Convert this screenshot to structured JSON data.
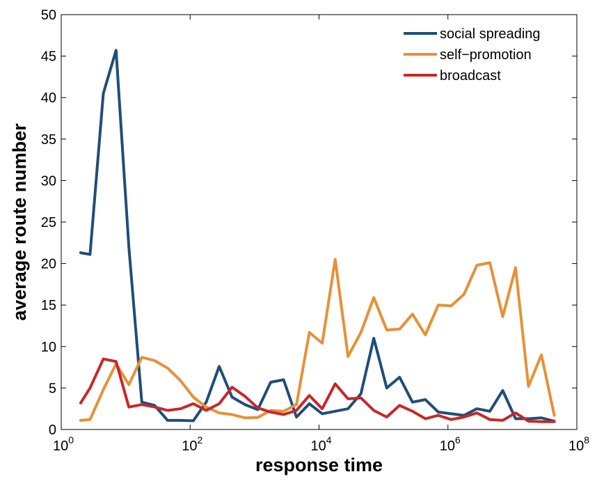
{
  "chart_data": {
    "type": "line",
    "xlabel": "response time",
    "ylabel": "average route number",
    "xscale": "log",
    "xlim": [
      1,
      100000000
    ],
    "ylim": [
      0,
      50
    ],
    "grid": false,
    "legend_position": "top-right",
    "x_ticks": [
      {
        "base": "10",
        "exp": "0",
        "value": 1
      },
      {
        "base": "10",
        "exp": "2",
        "value": 100
      },
      {
        "base": "10",
        "exp": "4",
        "value": 10000
      },
      {
        "base": "10",
        "exp": "6",
        "value": 1000000
      },
      {
        "base": "10",
        "exp": "8",
        "value": 100000000
      }
    ],
    "y_ticks": [
      "0",
      "5",
      "10",
      "15",
      "20",
      "25",
      "30",
      "35",
      "40",
      "45",
      "50"
    ],
    "x": [
      2,
      2.8,
      4.5,
      7.1,
      11.2,
      17.8,
      28.2,
      44.7,
      70.8,
      112,
      178,
      282,
      447,
      708,
      1122,
      1778,
      2818,
      4467,
      7079,
      11220,
      17783,
      28184,
      44668,
      70795,
      112202,
      177828,
      281838,
      446684,
      707946,
      1122018,
      1778279,
      2818383,
      4466836,
      7079458,
      11220185,
      17782794,
      28183829,
      44668359
    ],
    "series": [
      {
        "name": "social spreading",
        "color": "#1f4e79",
        "values": [
          21.3,
          21.1,
          40.5,
          45.7,
          22.0,
          3.3,
          2.9,
          1.1,
          1.1,
          1.05,
          3.3,
          7.6,
          3.9,
          3.0,
          2.4,
          5.7,
          6.0,
          1.5,
          3.1,
          1.9,
          2.2,
          2.5,
          4.3,
          11.0,
          5.0,
          6.3,
          3.3,
          3.6,
          2.1,
          1.9,
          1.7,
          2.5,
          2.2,
          4.7,
          1.3,
          1.3,
          1.4,
          1.0
        ]
      },
      {
        "name": "self−promotion",
        "color": "#e69138",
        "values": [
          1.1,
          1.2,
          4.8,
          7.9,
          5.4,
          8.7,
          8.3,
          7.4,
          5.9,
          3.9,
          2.7,
          2.0,
          1.8,
          1.4,
          1.45,
          2.3,
          2.2,
          3.0,
          11.7,
          10.4,
          20.5,
          8.8,
          11.7,
          15.9,
          12.0,
          12.1,
          13.9,
          11.4,
          15.0,
          14.9,
          16.3,
          19.8,
          20.1,
          13.6,
          19.5,
          5.2,
          9.0,
          1.7
        ]
      },
      {
        "name": "broadcast",
        "color": "#c62828",
        "values": [
          3.2,
          5.0,
          8.5,
          8.2,
          2.7,
          3.0,
          2.7,
          2.3,
          2.5,
          3.1,
          2.3,
          3.1,
          5.1,
          4.0,
          2.6,
          2.1,
          1.8,
          2.3,
          4.1,
          2.5,
          5.5,
          3.7,
          3.8,
          2.3,
          1.5,
          2.9,
          2.2,
          1.3,
          1.7,
          1.2,
          1.5,
          2.0,
          1.2,
          1.1,
          2.0,
          1.0,
          0.95,
          0.95
        ]
      }
    ]
  }
}
